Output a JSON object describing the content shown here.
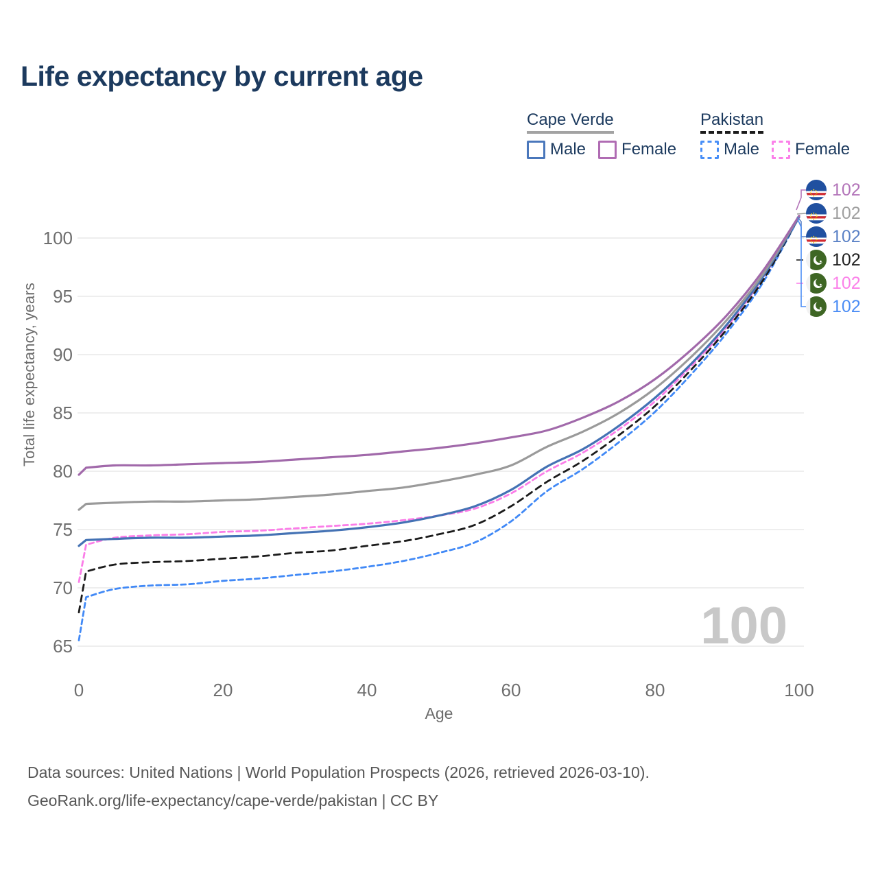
{
  "title": "Life expectancy by current age",
  "watermark": "100",
  "legend": {
    "groups": [
      {
        "country": "Cape Verde",
        "style": "solid",
        "underline_color": "#a3a3a3",
        "items": [
          {
            "label": "Male",
            "color": "#4a77bb",
            "dashed": false
          },
          {
            "label": "Female",
            "color": "#b06cb3",
            "dashed": false
          }
        ]
      },
      {
        "country": "Pakistan",
        "style": "dashed",
        "underline_color": "#1c1c1c",
        "items": [
          {
            "label": "Male",
            "color": "#478ef7",
            "dashed": true
          },
          {
            "label": "Female",
            "color": "#fb80e9",
            "dashed": true
          }
        ]
      }
    ]
  },
  "chart_data": {
    "type": "line",
    "title": "Life expectancy by current age",
    "xlabel": "Age",
    "ylabel": "Total life expectancy, years",
    "xlim": [
      0,
      100
    ],
    "ylim": [
      65,
      102.5
    ],
    "x_ticks": [
      0,
      20,
      40,
      60,
      80,
      100
    ],
    "y_ticks": [
      65,
      70,
      75,
      80,
      85,
      90,
      95,
      100
    ],
    "grid": true,
    "legend_position": "top-right",
    "ages": [
      0,
      1,
      5,
      10,
      15,
      20,
      25,
      30,
      35,
      40,
      45,
      50,
      55,
      60,
      65,
      70,
      75,
      80,
      85,
      90,
      95,
      100
    ],
    "series": [
      {
        "id": "cape-verde-female",
        "name": "Cape Verde Female",
        "flag": "cape-verde",
        "dash": null,
        "color": "#a169aa",
        "label_color": "#b273b8",
        "end_label": "102",
        "values": [
          79.7,
          80.3,
          80.5,
          80.5,
          80.6,
          80.7,
          80.8,
          81.0,
          81.2,
          81.4,
          81.7,
          82.0,
          82.4,
          82.9,
          83.5,
          84.6,
          86.0,
          87.9,
          90.4,
          93.4,
          97.2,
          101.9
        ]
      },
      {
        "id": "cape-verde-all",
        "name": "Cape Verde Both sexes",
        "flag": "cape-verde",
        "dash": null,
        "color": "#9a9a9a",
        "label_color": "#9f9f9f",
        "end_label": "102",
        "values": [
          76.7,
          77.2,
          77.3,
          77.4,
          77.4,
          77.5,
          77.6,
          77.8,
          78.0,
          78.3,
          78.6,
          79.1,
          79.7,
          80.5,
          82.1,
          83.4,
          85.0,
          87.1,
          89.8,
          93.0,
          96.9,
          101.9
        ]
      },
      {
        "id": "cape-verde-male",
        "name": "Cape Verde Male",
        "flag": "cape-verde",
        "dash": null,
        "color": "#4472b4",
        "label_color": "#5b82c6",
        "end_label": "102",
        "values": [
          73.6,
          74.1,
          74.2,
          74.3,
          74.3,
          74.4,
          74.5,
          74.7,
          74.9,
          75.2,
          75.6,
          76.2,
          77.0,
          78.4,
          80.4,
          81.9,
          83.9,
          86.3,
          89.2,
          92.6,
          96.7,
          101.8
        ]
      },
      {
        "id": "pakistan-all",
        "name": "Pakistan Both sexes",
        "flag": "pakistan",
        "dash": "9 7",
        "color": "#1b1b1b",
        "label_color": "#1f1f1f",
        "end_label": "102",
        "values": [
          67.9,
          71.4,
          72.0,
          72.2,
          72.3,
          72.5,
          72.7,
          73.0,
          73.2,
          73.6,
          74.0,
          74.6,
          75.4,
          77.0,
          79.1,
          80.9,
          83.1,
          85.6,
          88.7,
          92.2,
          96.4,
          101.8
        ]
      },
      {
        "id": "pakistan-female",
        "name": "Pakistan Female",
        "flag": "pakistan",
        "dash": "7 5",
        "color": "#fb7de8",
        "label_color": "#fb80e9",
        "end_label": "102",
        "values": [
          70.5,
          73.7,
          74.3,
          74.5,
          74.6,
          74.8,
          74.9,
          75.1,
          75.3,
          75.5,
          75.8,
          76.2,
          76.8,
          78.1,
          80.0,
          81.6,
          83.6,
          86.0,
          89.0,
          92.4,
          96.6,
          101.8
        ]
      },
      {
        "id": "pakistan-male",
        "name": "Pakistan Male",
        "flag": "pakistan",
        "dash": "7 5",
        "color": "#4189f6",
        "label_color": "#4b8df5",
        "end_label": "102",
        "values": [
          65.5,
          69.2,
          69.9,
          70.2,
          70.3,
          70.6,
          70.8,
          71.1,
          71.4,
          71.8,
          72.3,
          73.0,
          73.9,
          75.7,
          78.3,
          80.2,
          82.5,
          85.1,
          88.3,
          91.9,
          96.2,
          101.8
        ]
      }
    ]
  },
  "footer": {
    "line1": "Data sources: United Nations | World Population Prospects (2026, retrieved 2026-03-10).",
    "line2": "GeoRank.org/life-expectancy/cape-verde/pakistan | CC BY"
  }
}
